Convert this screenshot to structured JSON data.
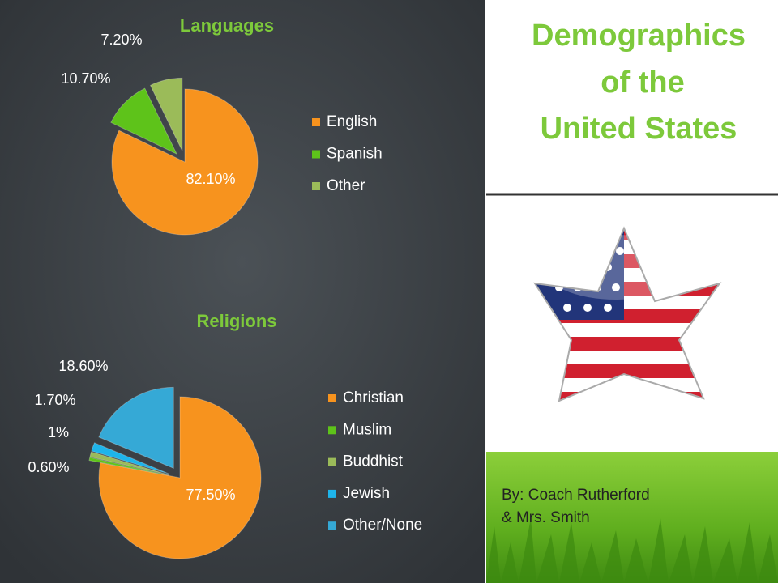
{
  "slide": {
    "title_lines": [
      "Demographics",
      "of the",
      "United States"
    ],
    "author_lines": [
      "By: Coach Rutherford",
      "& Mrs. Smith"
    ]
  },
  "chart_data": [
    {
      "type": "pie",
      "title": "Languages",
      "categories": [
        "English",
        "Spanish",
        "Other"
      ],
      "values": [
        82.1,
        10.7,
        7.2
      ],
      "value_labels": [
        "82.10%",
        "10.70%",
        "7.20%"
      ],
      "colors": [
        "#f7931e",
        "#5ec31a",
        "#9bbb59"
      ]
    },
    {
      "type": "pie",
      "title": "Religions",
      "categories": [
        "Christian",
        "Muslim",
        "Buddhist",
        "Jewish",
        "Other/None"
      ],
      "values": [
        77.5,
        0.6,
        1,
        1.7,
        18.6
      ],
      "value_labels": [
        "77.50%",
        "0.60%",
        "1%",
        "1.70%",
        "18.60%"
      ],
      "colors": [
        "#f7931e",
        "#5ec31a",
        "#9bbb59",
        "#1eb4ea",
        "#35a9d6"
      ]
    }
  ]
}
